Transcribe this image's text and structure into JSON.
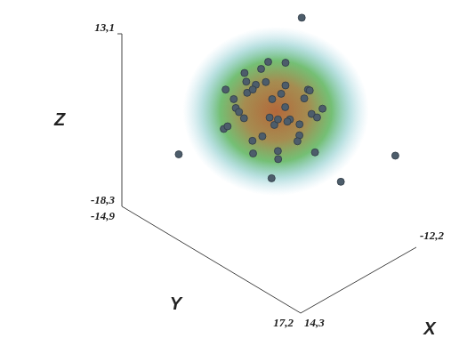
{
  "chart_data": {
    "type": "scatter3d",
    "x_label": "X",
    "y_label": "Y",
    "z_label": "Z",
    "x": [
      -10.9,
      11.7,
      -12.2,
      -5.6,
      2.4,
      1.2,
      -3.4,
      4.5,
      -1.8,
      2.9,
      -5.2,
      6.1,
      0.3,
      -2.6,
      3.8,
      -4.7,
      5.4,
      -0.9,
      2.1,
      -6.3,
      7.2,
      -3.1,
      0.8,
      4.1,
      -1.4,
      -5.8,
      3.3,
      -2.2,
      6.6,
      1.7,
      -4.0,
      2.6,
      -0.4,
      5.0,
      -3.7,
      0.9,
      -6.9,
      4.8,
      -1.1,
      3.0,
      -2.9,
      1.4,
      -4.3,
      6.8,
      -0.6
    ],
    "y": [
      -2.1,
      -6.9,
      14.0,
      9.2,
      2.8,
      1.5,
      0.8,
      -2.1,
      4.6,
      3.3,
      -1.4,
      2.2,
      -3.8,
      6.2,
      5.1,
      3.9,
      -3.6,
      -1.7,
      7.3,
      1.1,
      0.6,
      -4.4,
      2.7,
      -0.5,
      5.8,
      4.7,
      -4.9,
      -0.3,
      4.4,
      -2.8,
      7.1,
      1.9,
      3.1,
      6.0,
      -2.6,
      -5.3,
      2.5,
      1.3,
      8.0,
      -1.2,
      2.0,
      4.9,
      0.1,
      -1.8,
      -3.0
    ],
    "z": [
      13.1,
      -5.1,
      -3.5,
      -8.3,
      -7.9,
      2.1,
      5.6,
      3.2,
      -0.7,
      7.4,
      1.9,
      0.4,
      6.8,
      3.9,
      -2.3,
      6.1,
      -1.2,
      8.3,
      1.6,
      -2.8,
      5.3,
      2.7,
      -3.6,
      8.9,
      7.1,
      0.9,
      4.4,
      -1.9,
      2.8,
      -0.4,
      4.8,
      9.6,
      4.3,
      6.2,
      7.8,
      1.3,
      4.1,
      -3.1,
      -1.5,
      5.9,
      0.2,
      3.5,
      9.0,
      1.0,
      3.8
    ],
    "xlim": [
      14.3,
      -12.2
    ],
    "ylim": [
      -14.9,
      17.2
    ],
    "zlim": [
      -18.3,
      13.1
    ],
    "xticks": [
      {
        "value": 14.3,
        "label": "14,3"
      },
      {
        "value": -12.2,
        "label": "-12,2"
      }
    ],
    "yticks": [
      {
        "value": -14.9,
        "label": "-14,9"
      },
      {
        "value": 17.2,
        "label": "17,2"
      }
    ],
    "zticks": [
      {
        "value": -18.3,
        "label": "-18,3"
      },
      {
        "value": 13.1,
        "label": "13,1"
      }
    ],
    "color": "#4d5d6b",
    "grid": false
  }
}
